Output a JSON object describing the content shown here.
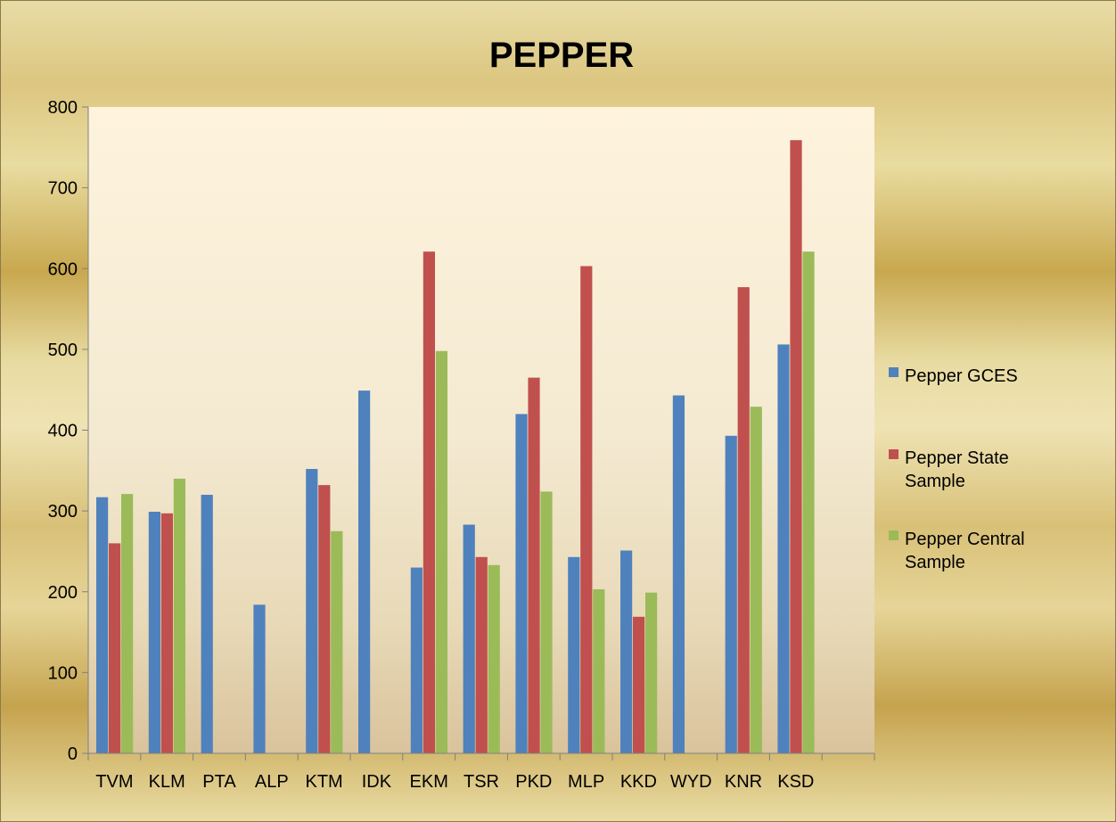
{
  "chart_data": {
    "type": "bar",
    "title": "PEPPER",
    "xlabel": "",
    "ylabel": "",
    "categories": [
      "TVM",
      "KLM",
      "PTA",
      "ALP",
      "KTM",
      "IDK",
      "EKM",
      "TSR",
      "PKD",
      "MLP",
      "KKD",
      "WYD",
      "KNR",
      "KSD"
    ],
    "series": [
      {
        "name": "Pepper GCES",
        "color": "#4f81bd",
        "values": [
          317,
          299,
          320,
          184,
          352,
          449,
          230,
          283,
          420,
          243,
          251,
          443,
          393,
          506
        ]
      },
      {
        "name": "Pepper State Sample",
        "color": "#c0504d",
        "values": [
          260,
          297,
          null,
          null,
          332,
          null,
          621,
          243,
          465,
          603,
          169,
          null,
          577,
          759
        ]
      },
      {
        "name": "Pepper Central Sample",
        "color": "#9bbb59",
        "values": [
          321,
          340,
          null,
          null,
          275,
          null,
          498,
          233,
          324,
          203,
          199,
          null,
          429,
          621
        ]
      }
    ],
    "ylim": [
      0,
      800
    ],
    "yticks": [
      0,
      100,
      200,
      300,
      400,
      500,
      600,
      700,
      800
    ],
    "legend_position": "right",
    "legend_labels": [
      [
        "Pepper GCES"
      ],
      [
        "Pepper State",
        "Sample"
      ],
      [
        "Pepper Central",
        "Sample"
      ]
    ],
    "grid": false
  }
}
